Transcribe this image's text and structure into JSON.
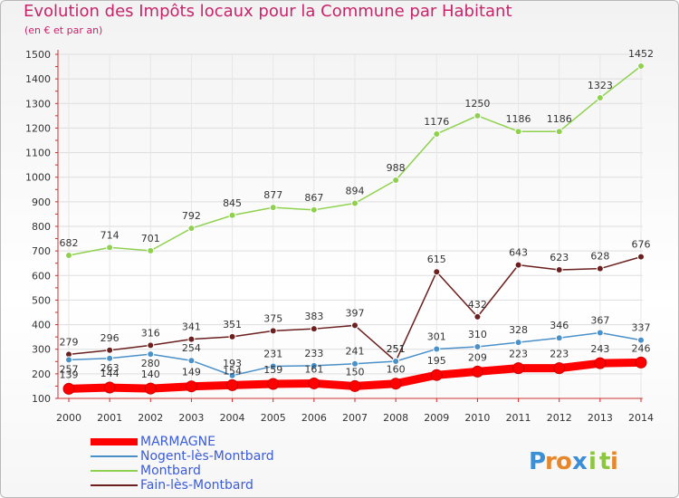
{
  "header": {
    "title": "Evolution des Impôts locaux pour la Commune par Habitant",
    "subtitle": "(en € et par an)"
  },
  "logo": {
    "text": "Proxiti",
    "letters": [
      "P",
      "r",
      "o",
      "x",
      "i",
      "t",
      "i"
    ],
    "colors": [
      "#3b8fd6",
      "#e6872b",
      "#e6872b",
      "#3b8fd6",
      "#8dc63f",
      "#8dc63f",
      "#e6872b"
    ]
  },
  "chart_data": {
    "type": "line",
    "x": [
      2000,
      2001,
      2002,
      2003,
      2004,
      2005,
      2006,
      2007,
      2008,
      2009,
      2010,
      2011,
      2012,
      2013,
      2014
    ],
    "ylim": [
      100,
      1500
    ],
    "yticks": [
      100,
      200,
      300,
      400,
      500,
      600,
      700,
      800,
      900,
      1000,
      1100,
      1200,
      1300,
      1400,
      1500
    ],
    "grid": true,
    "legend_position": "bottom-left",
    "series": [
      {
        "name": "MARMAGNE",
        "color": "#ff0000",
        "values": [
          139,
          144,
          140,
          149,
          154,
          159,
          161,
          150,
          160,
          195,
          209,
          223,
          223,
          243,
          246
        ]
      },
      {
        "name": "Nogent-lès-Montbard",
        "color": "#4a90c9",
        "values": [
          257,
          263,
          280,
          254,
          193,
          231,
          233,
          241,
          251,
          301,
          310,
          328,
          346,
          367,
          337
        ]
      },
      {
        "name": "Montbard",
        "color": "#8fd14f",
        "values": [
          682,
          714,
          701,
          792,
          845,
          877,
          867,
          894,
          988,
          1176,
          1250,
          1186,
          1186,
          1323,
          1452
        ]
      },
      {
        "name": "Fain-lès-Montbard",
        "color": "#6b1f1f",
        "values": [
          279,
          296,
          316,
          341,
          351,
          375,
          383,
          397,
          251,
          615,
          432,
          643,
          623,
          628,
          676
        ]
      }
    ]
  }
}
